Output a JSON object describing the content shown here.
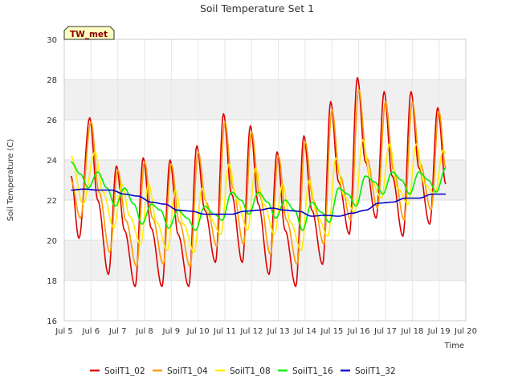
{
  "chart_data": {
    "type": "line",
    "title": "Soil Temperature Set 1",
    "xlabel": "Time",
    "ylabel": "Soil Temperature (C)",
    "ylim": [
      16,
      30
    ],
    "yticks": [
      16,
      18,
      20,
      22,
      24,
      26,
      28,
      30
    ],
    "xlim": [
      5,
      20
    ],
    "xtick_values": [
      5,
      6,
      7,
      8,
      9,
      10,
      11,
      12,
      13,
      14,
      15,
      16,
      17,
      18,
      19,
      20
    ],
    "xtick_labels": [
      "Jul 5",
      "Jul 6",
      "Jul 7",
      "Jul 8",
      "Jul 9",
      "Jul 10",
      "Jul 11",
      "Jul 12",
      "Jul 13",
      "Jul 14",
      "Jul 15",
      "Jul 16",
      "Jul 17",
      "Jul 18",
      "Jul 19",
      "Jul 20"
    ],
    "x_unit": "day of July",
    "grid": true,
    "legend_position": "bottom",
    "annotation": "TW_met",
    "series": [
      {
        "name": "SoilT1_02",
        "color": "#dd0000",
        "x": [
          5.25,
          5.55,
          5.95,
          6.25,
          6.65,
          6.95,
          7.25,
          7.65,
          7.95,
          8.25,
          8.65,
          8.95,
          9.25,
          9.65,
          9.95,
          10.25,
          10.65,
          10.95,
          11.25,
          11.65,
          11.95,
          12.25,
          12.65,
          12.95,
          13.25,
          13.65,
          13.95,
          14.25,
          14.65,
          14.95,
          15.25,
          15.65,
          15.95,
          16.25,
          16.65,
          16.95,
          17.25,
          17.65,
          17.95,
          18.25,
          18.65,
          18.95,
          19.25
        ],
        "y": [
          23.2,
          20.1,
          26.1,
          22.0,
          18.3,
          23.7,
          20.5,
          17.7,
          24.1,
          20.6,
          17.7,
          24.0,
          20.3,
          17.7,
          24.7,
          21.5,
          18.9,
          26.3,
          22.3,
          18.9,
          25.7,
          21.8,
          18.3,
          24.4,
          20.5,
          17.7,
          25.2,
          21.5,
          18.8,
          26.9,
          22.9,
          20.3,
          28.1,
          23.9,
          21.1,
          27.4,
          23.2,
          20.2,
          27.4,
          23.6,
          20.8,
          26.6,
          22.8
        ]
      },
      {
        "name": "SoilT1_04",
        "color": "#ff9900",
        "x": [
          5.25,
          5.6,
          6.0,
          6.3,
          6.7,
          7.0,
          7.3,
          7.7,
          8.0,
          8.3,
          8.7,
          9.0,
          9.3,
          9.7,
          10.0,
          10.3,
          10.7,
          11.0,
          11.3,
          11.7,
          12.0,
          12.3,
          12.7,
          13.0,
          13.3,
          13.7,
          14.0,
          14.3,
          14.7,
          15.0,
          15.3,
          15.7,
          16.0,
          16.3,
          16.7,
          17.0,
          17.3,
          17.7,
          18.0,
          18.3,
          18.7,
          19.0,
          19.25
        ],
        "y": [
          23.0,
          21.1,
          25.9,
          22.4,
          19.4,
          23.5,
          21.0,
          18.7,
          23.9,
          21.1,
          18.8,
          23.8,
          20.9,
          18.7,
          24.4,
          21.9,
          19.7,
          25.9,
          22.6,
          19.8,
          25.4,
          22.2,
          19.3,
          24.2,
          21.0,
          18.8,
          24.9,
          22.0,
          19.8,
          26.5,
          23.2,
          21.0,
          27.5,
          24.1,
          21.6,
          26.9,
          23.5,
          21.0,
          26.9,
          23.8,
          21.5,
          26.4,
          23.6
        ]
      },
      {
        "name": "SoilT1_08",
        "color": "#ffee00",
        "x": [
          5.25,
          5.7,
          6.15,
          6.45,
          6.85,
          7.15,
          7.45,
          7.85,
          8.15,
          8.45,
          8.85,
          9.15,
          9.45,
          9.85,
          10.15,
          10.45,
          10.85,
          11.15,
          11.45,
          11.85,
          12.15,
          12.45,
          12.85,
          13.15,
          13.45,
          13.85,
          14.15,
          14.45,
          14.85,
          15.15,
          15.45,
          15.85,
          16.15,
          16.45,
          16.85,
          17.15,
          17.45,
          17.85,
          18.15,
          18.45,
          18.85,
          19.15,
          19.25
        ],
        "y": [
          24.2,
          21.8,
          24.4,
          22.4,
          20.6,
          22.8,
          21.2,
          19.8,
          22.8,
          20.9,
          19.5,
          22.5,
          20.8,
          19.4,
          22.6,
          21.1,
          20.3,
          23.8,
          22.0,
          20.5,
          23.6,
          21.8,
          20.3,
          22.8,
          20.9,
          19.5,
          23.0,
          21.2,
          20.2,
          24.1,
          22.2,
          21.4,
          25.0,
          23.0,
          22.1,
          24.8,
          22.6,
          21.8,
          24.8,
          22.8,
          22.3,
          24.5,
          24.3
        ]
      },
      {
        "name": "SoilT1_16",
        "color": "#00ee00",
        "x": [
          5.25,
          5.6,
          5.9,
          6.25,
          6.6,
          6.9,
          7.25,
          7.6,
          7.9,
          8.25,
          8.6,
          8.9,
          9.25,
          9.6,
          9.9,
          10.25,
          10.6,
          10.9,
          11.25,
          11.6,
          11.9,
          12.25,
          12.6,
          12.9,
          13.25,
          13.6,
          13.9,
          14.25,
          14.6,
          14.9,
          15.25,
          15.6,
          15.9,
          16.25,
          16.6,
          16.9,
          17.25,
          17.6,
          17.9,
          18.25,
          18.6,
          18.9,
          19.25
        ],
        "y": [
          23.9,
          23.3,
          22.6,
          23.4,
          22.6,
          21.7,
          22.6,
          21.8,
          20.8,
          21.8,
          21.5,
          20.6,
          21.5,
          21.1,
          20.5,
          21.7,
          21.3,
          21.0,
          22.4,
          22.0,
          21.3,
          22.4,
          21.9,
          21.1,
          22.0,
          21.5,
          20.5,
          21.9,
          21.4,
          20.9,
          22.6,
          22.3,
          21.7,
          23.2,
          22.9,
          22.3,
          23.4,
          23.0,
          22.3,
          23.4,
          23.0,
          22.4,
          23.6
        ]
      },
      {
        "name": "SoilT1_32",
        "color": "#0000cc",
        "x": [
          5.25,
          5.75,
          6.25,
          6.75,
          7.25,
          7.75,
          8.25,
          8.75,
          9.25,
          9.75,
          10.25,
          10.75,
          11.25,
          11.75,
          12.25,
          12.75,
          13.25,
          13.75,
          14.25,
          14.75,
          15.25,
          15.75,
          16.25,
          16.75,
          17.25,
          17.75,
          18.25,
          18.75,
          19.25
        ],
        "y": [
          22.5,
          22.55,
          22.5,
          22.5,
          22.3,
          22.2,
          21.9,
          21.8,
          21.5,
          21.45,
          21.3,
          21.3,
          21.3,
          21.45,
          21.5,
          21.6,
          21.5,
          21.45,
          21.2,
          21.25,
          21.2,
          21.35,
          21.5,
          21.85,
          21.9,
          22.1,
          22.1,
          22.3,
          22.3
        ]
      }
    ]
  }
}
